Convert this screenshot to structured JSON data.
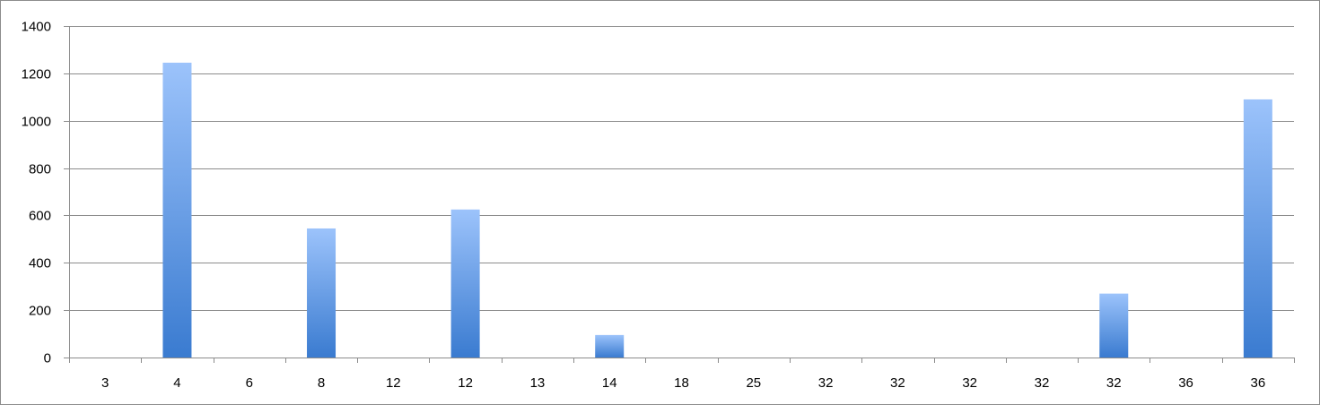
{
  "chart_data": {
    "type": "bar",
    "title": "",
    "xlabel": "",
    "ylabel": "",
    "ylim": [
      0,
      1400
    ],
    "yticks": [
      0,
      200,
      400,
      600,
      800,
      1000,
      1200,
      1400
    ],
    "grid": true,
    "legend": "none",
    "categories": [
      "3",
      "4",
      "6",
      "8",
      "12",
      "12",
      "13",
      "14",
      "18",
      "25",
      "32",
      "32",
      "32",
      "32",
      "32",
      "36",
      "36"
    ],
    "values": [
      0,
      1245,
      0,
      545,
      0,
      625,
      0,
      95,
      0,
      0,
      0,
      0,
      0,
      0,
      270,
      0,
      1090
    ],
    "colors": {
      "bar_top": "#9cc3fb",
      "bar_bottom": "#3a7bd0",
      "grid": "#8c8c8c",
      "axis": "#8c8c8c"
    }
  }
}
